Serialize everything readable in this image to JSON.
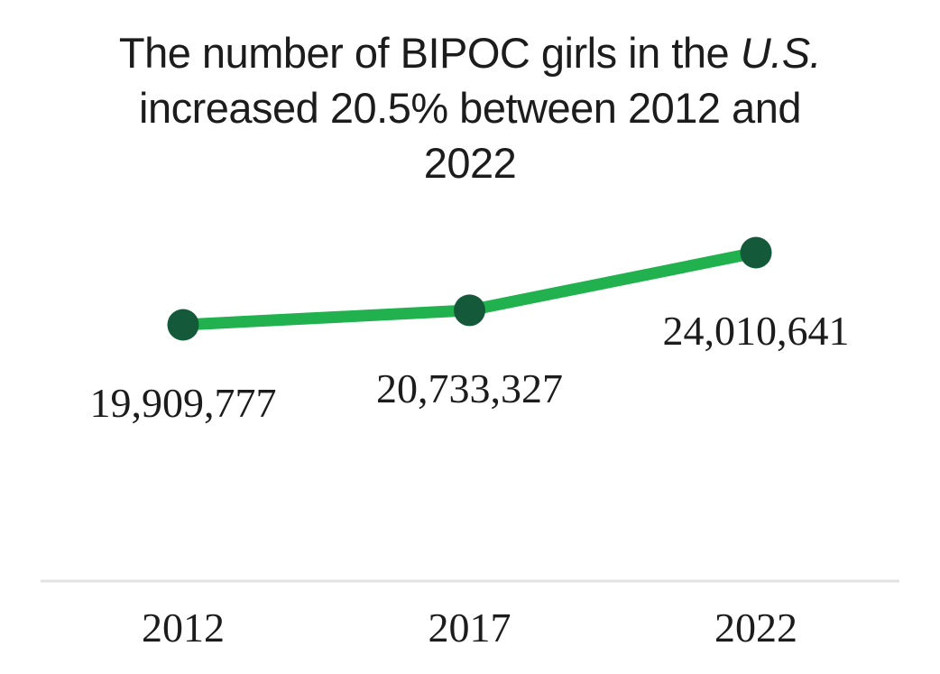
{
  "title": {
    "line1_prefix": "The number of BIPOC girls in the ",
    "line1_italic": "U.S.",
    "line2": "increased 20.5% between 2012 and",
    "line3": "2022"
  },
  "chart_data": {
    "type": "line",
    "title": "The number of BIPOC girls in the U.S. increased 20.5% between 2012 and 2022",
    "categories": [
      "2012",
      "2017",
      "2022"
    ],
    "values": [
      19909777,
      20733327,
      24010641
    ],
    "value_labels": [
      "19,909,777",
      "20,733,327",
      "24,010,641"
    ],
    "series": [
      {
        "name": "BIPOC girls in the U.S.",
        "values": [
          19909777,
          20733327,
          24010641
        ]
      }
    ],
    "xlabel": "",
    "ylabel": "",
    "ylim": [
      19909777,
      24010641
    ],
    "grid": false,
    "legend": false,
    "line_color": "#21b14e",
    "marker_color": "#15593b",
    "axis_line_color": "#e2e2e2",
    "text_color": "#1c1c1c"
  }
}
